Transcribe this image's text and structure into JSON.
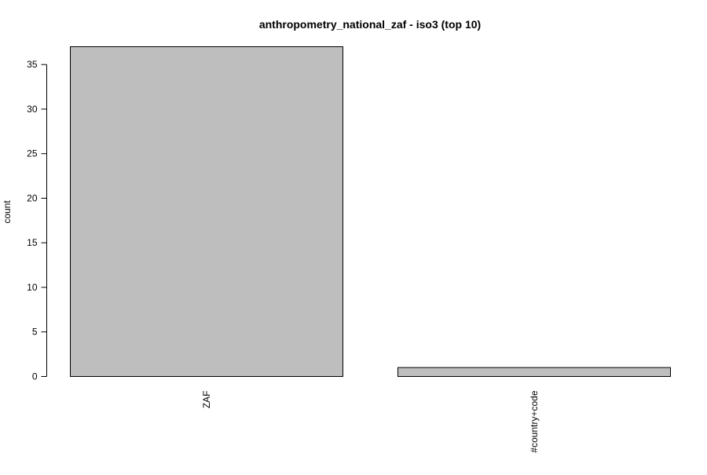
{
  "chart_data": {
    "type": "bar",
    "title": "anthropometry_national_zaf - iso3 (top 10)",
    "xlabel": "",
    "ylabel": "count",
    "categories": [
      "ZAF",
      "#country+code"
    ],
    "values": [
      37,
      1
    ],
    "ylim": [
      0,
      37
    ],
    "yticks": [
      0,
      5,
      10,
      15,
      20,
      25,
      30,
      35
    ],
    "grid": false,
    "legend": "none",
    "colors": {
      "bar_fill": "#bebebe",
      "bar_stroke": "#000000",
      "axis": "#000000",
      "background": "#ffffff"
    }
  }
}
